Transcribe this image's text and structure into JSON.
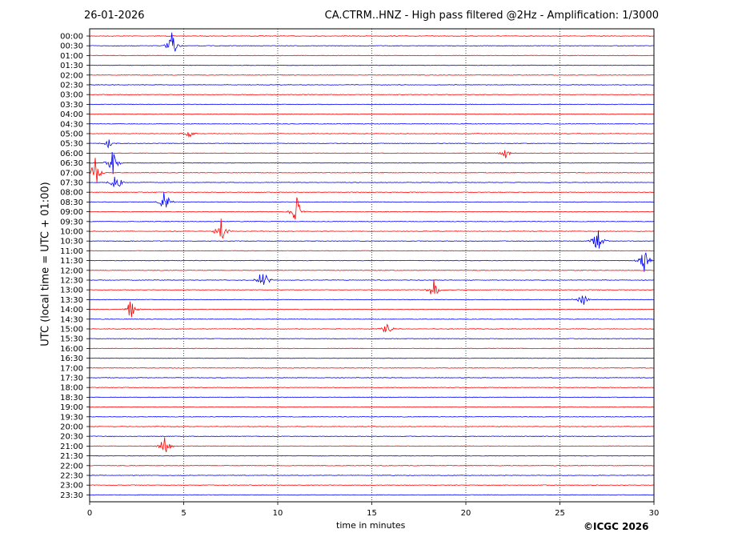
{
  "header": {
    "date": "26-01-2026",
    "title": "CA.CTRM..HNZ - High pass filtered @2Hz - Amplification: 1/3000"
  },
  "chart_data": {
    "type": "line",
    "title": "CA.CTRM..HNZ - High pass filtered @2Hz - Amplification: 1/3000",
    "xlabel": "time in minutes",
    "ylabel": "UTC (local time = UTC + 01:00)",
    "xlim": [
      0,
      30
    ],
    "x_ticks": [
      "0",
      "5",
      "10",
      "15",
      "20",
      "25",
      "30"
    ],
    "y_ticks": [
      "00:00",
      "00:30",
      "01:00",
      "01:30",
      "02:00",
      "02:30",
      "03:00",
      "03:30",
      "04:00",
      "04:30",
      "05:00",
      "05:30",
      "06:00",
      "06:30",
      "07:00",
      "07:30",
      "08:00",
      "08:30",
      "09:00",
      "09:30",
      "10:00",
      "10:30",
      "11:00",
      "11:30",
      "12:00",
      "12:30",
      "13:00",
      "13:30",
      "14:00",
      "14:30",
      "15:00",
      "15:30",
      "16:00",
      "16:30",
      "17:00",
      "17:30",
      "18:00",
      "18:30",
      "19:00",
      "19:30",
      "20:00",
      "20:30",
      "21:00",
      "21:30",
      "22:00",
      "22:30",
      "23:00",
      "23:30"
    ],
    "trace_colors": [
      "#ff0000",
      "#0000ff"
    ],
    "grid": "vertical dotted lines at each 5 minute tick",
    "events": [
      {
        "row": "00:30",
        "minute": 4.4,
        "amplitude": 1.7
      },
      {
        "row": "05:00",
        "minute": 5.3,
        "amplitude": 0.5
      },
      {
        "row": "05:30",
        "minute": 1.0,
        "amplitude": 0.5
      },
      {
        "row": "06:00",
        "minute": 22.1,
        "amplitude": 0.6
      },
      {
        "row": "06:30",
        "minute": 1.2,
        "amplitude": 1.5
      },
      {
        "row": "07:00",
        "minute": 0.3,
        "amplitude": 1.8
      },
      {
        "row": "07:30",
        "minute": 1.4,
        "amplitude": 1.2
      },
      {
        "row": "08:30",
        "minute": 4.0,
        "amplitude": 1.4
      },
      {
        "row": "09:00",
        "minute": 11.0,
        "amplitude": 1.8
      },
      {
        "row": "10:00",
        "minute": 7.0,
        "amplitude": 1.5
      },
      {
        "row": "10:30",
        "minute": 27.0,
        "amplitude": 1.6
      },
      {
        "row": "11:30",
        "minute": 29.5,
        "amplitude": 1.4
      },
      {
        "row": "12:30",
        "minute": 9.2,
        "amplitude": 1.6
      },
      {
        "row": "13:00",
        "minute": 18.3,
        "amplitude": 1.2
      },
      {
        "row": "13:30",
        "minute": 26.2,
        "amplitude": 1.0
      },
      {
        "row": "14:00",
        "minute": 2.2,
        "amplitude": 1.2
      },
      {
        "row": "15:00",
        "minute": 15.8,
        "amplitude": 0.9
      },
      {
        "row": "21:00",
        "minute": 4.0,
        "amplitude": 1.4
      }
    ]
  },
  "copyright": "©ICGC 2026"
}
